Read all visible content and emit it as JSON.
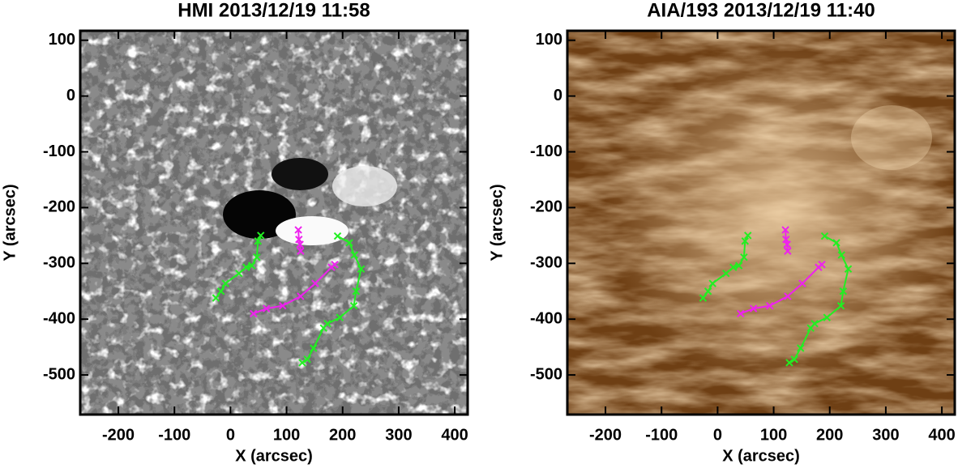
{
  "chart_data": [
    {
      "type": "line",
      "title": "HMI 2013/12/19 11:58",
      "xlabel": "X (arcsec)",
      "ylabel": "Y (arcsec)",
      "xlim": [
        -268,
        423
      ],
      "ylim": [
        -571,
        117
      ],
      "xticks": [
        -200,
        -100,
        0,
        100,
        200,
        300,
        400
      ],
      "yticks": [
        100,
        0,
        -100,
        -200,
        -300,
        -400,
        -500
      ],
      "series": [
        {
          "color": "#22ee22",
          "x": [
            -26,
            -17,
            -9,
            15,
            28,
            38,
            47,
            49,
            54
          ],
          "values": [
            -362,
            -350,
            -336,
            -318,
            -307,
            -304,
            -289,
            -260,
            -250
          ]
        },
        {
          "color": "#22ee22",
          "x": [
            128,
            137,
            148,
            166,
            173,
            195,
            220,
            224,
            233,
            221,
            212,
            191
          ],
          "values": [
            -478,
            -472,
            -452,
            -416,
            -408,
            -397,
            -376,
            -350,
            -310,
            -285,
            -263,
            -251
          ]
        },
        {
          "color": "#ee22ee",
          "x": [
            41,
            64,
            93,
            125,
            151,
            180,
            186
          ],
          "values": [
            -390,
            -381,
            -376,
            -359,
            -336,
            -307,
            -302
          ]
        },
        {
          "color": "#ee22ee",
          "x": [
            121,
            122,
            124,
            125
          ],
          "values": [
            -240,
            -257,
            -266,
            -278
          ]
        }
      ]
    },
    {
      "type": "line",
      "title": "AIA/193 2013/12/19 11:40",
      "xlabel": "X (arcsec)",
      "ylabel": "Y (arcsec)",
      "xlim": [
        -268,
        423
      ],
      "ylim": [
        -571,
        117
      ],
      "xticks": [
        -200,
        -100,
        0,
        100,
        200,
        300,
        400
      ],
      "yticks": [
        100,
        0,
        -100,
        -200,
        -300,
        -400,
        -500
      ],
      "series": [
        {
          "color": "#22ee22",
          "x": [
            -26,
            -17,
            -9,
            15,
            28,
            38,
            47,
            49,
            54
          ],
          "values": [
            -362,
            -350,
            -336,
            -318,
            -307,
            -304,
            -289,
            -260,
            -250
          ]
        },
        {
          "color": "#22ee22",
          "x": [
            128,
            137,
            148,
            166,
            173,
            195,
            220,
            224,
            233,
            221,
            212,
            191
          ],
          "values": [
            -478,
            -472,
            -452,
            -416,
            -408,
            -397,
            -376,
            -350,
            -310,
            -285,
            -263,
            -251
          ]
        },
        {
          "color": "#ee22ee",
          "x": [
            41,
            64,
            93,
            125,
            151,
            180,
            186
          ],
          "values": [
            -390,
            -381,
            -376,
            -359,
            -336,
            -307,
            -302
          ]
        },
        {
          "color": "#ee22ee",
          "x": [
            121,
            122,
            124,
            125
          ],
          "values": [
            -240,
            -257,
            -266,
            -278
          ]
        }
      ]
    }
  ]
}
